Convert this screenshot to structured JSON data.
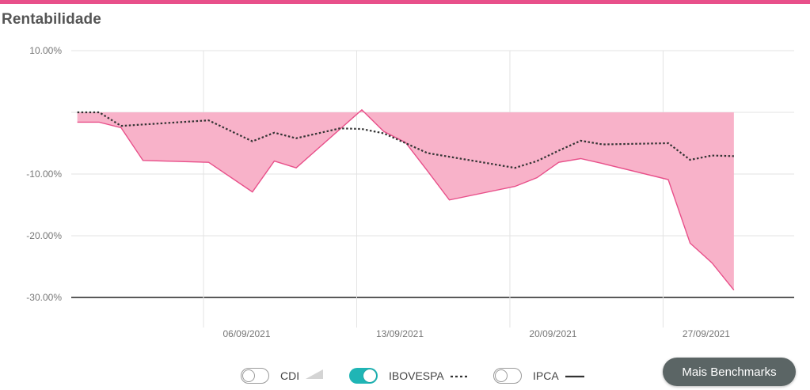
{
  "page": {
    "title": "Rentabilidade"
  },
  "colors": {
    "accent": "#e8508a",
    "area_fill": "#f8b2c9",
    "toggle_on": "#1fb5b5",
    "button_bg": "#5b6565"
  },
  "chart_data": {
    "type": "area",
    "ylim": [
      -30,
      10
    ],
    "y_ticks": [
      "10.00%",
      "-10.00%",
      "-20.00%",
      "-30.00%"
    ],
    "x_ticks": [
      "06/09/2021",
      "13/09/2021",
      "20/09/2021",
      "27/09/2021"
    ],
    "grid": true,
    "series": [
      {
        "name": "Rentabilidade",
        "style": "area",
        "x": [
          "2021-08-31",
          "2021-09-01",
          "2021-09-02",
          "2021-09-03",
          "2021-09-06",
          "2021-09-08",
          "2021-09-09",
          "2021-09-10",
          "2021-09-13",
          "2021-09-14",
          "2021-09-15",
          "2021-09-16",
          "2021-09-17",
          "2021-09-20",
          "2021-09-21",
          "2021-09-22",
          "2021-09-23",
          "2021-09-24",
          "2021-09-27",
          "2021-09-28",
          "2021-09-29",
          "2021-09-30"
        ],
        "values": [
          -1.6,
          -1.6,
          -2.5,
          -7.8,
          -8.1,
          -12.9,
          -7.9,
          -9.0,
          0.4,
          -3.1,
          -4.9,
          -9.5,
          -14.2,
          -12.0,
          -10.6,
          -8.1,
          -7.5,
          -8.3,
          -10.9,
          -21.2,
          -24.4,
          -28.8
        ]
      },
      {
        "name": "IBOVESPA",
        "style": "dotted",
        "x": [
          "2021-08-31",
          "2021-09-01",
          "2021-09-02",
          "2021-09-06",
          "2021-09-08",
          "2021-09-09",
          "2021-09-10",
          "2021-09-12",
          "2021-09-13",
          "2021-09-14",
          "2021-09-16",
          "2021-09-20",
          "2021-09-21",
          "2021-09-22",
          "2021-09-23",
          "2021-09-24",
          "2021-09-27",
          "2021-09-28",
          "2021-09-29",
          "2021-09-30"
        ],
        "values": [
          0.0,
          0.0,
          -2.2,
          -1.3,
          -4.7,
          -3.3,
          -4.2,
          -2.6,
          -2.7,
          -3.4,
          -6.6,
          -9.0,
          -7.9,
          -6.2,
          -4.6,
          -5.2,
          -5.0,
          -7.7,
          -7.0,
          -7.1
        ]
      }
    ]
  },
  "legend": {
    "items": [
      {
        "label": "CDI",
        "on": false,
        "icon": "area-triangle-icon"
      },
      {
        "label": "IBOVESPA",
        "on": true,
        "icon": "dashed-line-icon"
      },
      {
        "label": "IPCA",
        "on": false,
        "icon": "solid-line-icon"
      }
    ]
  },
  "button": {
    "label": "Mais Benchmarks"
  }
}
